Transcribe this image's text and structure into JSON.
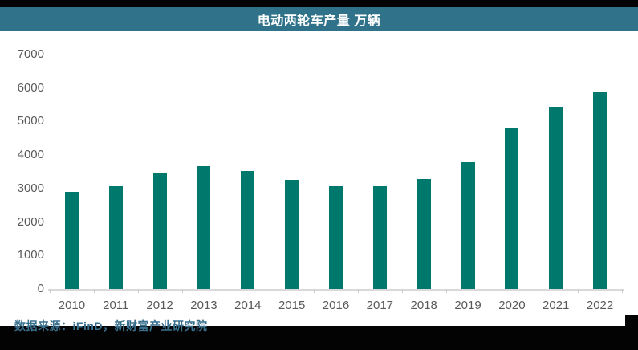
{
  "title": "电动两轮车产量 万辆",
  "source": "数据来源：iFinD，新财富产业研究院",
  "colors": {
    "title_bar": "#2F7289",
    "bar": "#00786C",
    "strip": "#030303",
    "axis_text": "#595959",
    "axis_line": "#D9D9D9",
    "source_text": "#39708E"
  },
  "chart_data": {
    "type": "bar",
    "title": "电动两轮车产量 万辆",
    "unit": "万辆",
    "categories": [
      "2010",
      "2011",
      "2012",
      "2013",
      "2014",
      "2015",
      "2016",
      "2017",
      "2018",
      "2019",
      "2020",
      "2021",
      "2022"
    ],
    "values": [
      2900,
      3060,
      3480,
      3670,
      3530,
      3250,
      3070,
      3070,
      3280,
      3780,
      4810,
      5450,
      5900
    ],
    "xlabel": "",
    "ylabel": "",
    "ylim": [
      0,
      7000
    ],
    "ytick_step": 1000,
    "grid": false,
    "legend": null,
    "bar_color": "#00786C"
  }
}
